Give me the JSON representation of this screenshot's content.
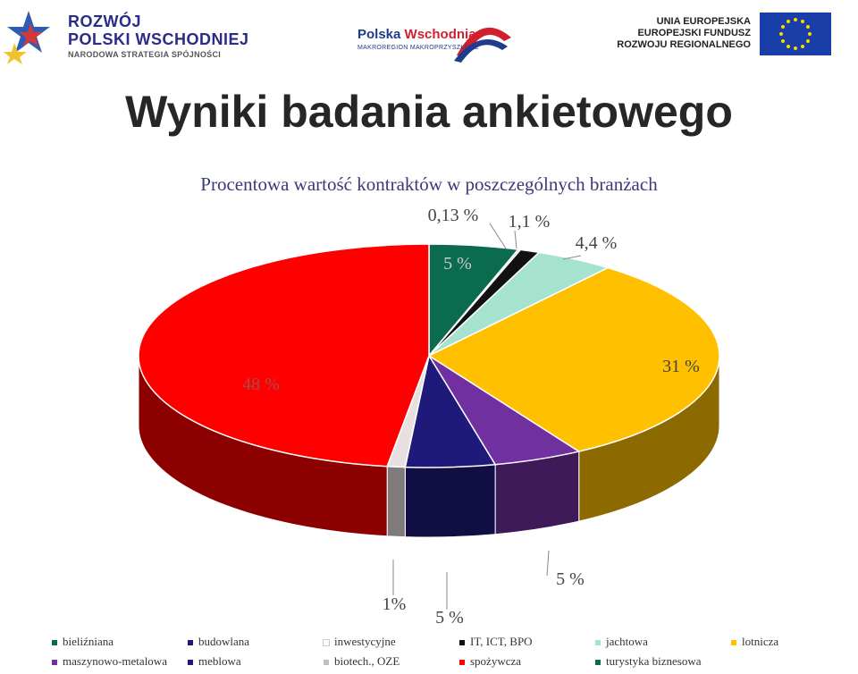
{
  "header": {
    "logo_left": {
      "line1": "ROZWÓJ",
      "line2": "POLSKI WSCHODNIEJ",
      "line3": "NARODOWA STRATEGIA SPÓJNOŚCI"
    },
    "logo_mid": {
      "word1": "Polska",
      "word2": "Wschodnia",
      "tagline": "MAKROREGION MAKROPRZYSZŁOŚĆ"
    },
    "logo_right": {
      "line1": "UNIA EUROPEJSKA",
      "line2": "EUROPEJSKI FUNDUSZ",
      "line3": "ROZWOJU REGIONALNEGO"
    }
  },
  "title": "Wyniki badania ankietowego",
  "chart_data": {
    "type": "pie",
    "title": "Procentowa wartość kontraktów w poszczególnych branżach",
    "slices": [
      {
        "label": "5 %",
        "value": 5,
        "color": "#0b6b4e"
      },
      {
        "label": "0,13 %",
        "value": 0.13,
        "color": "#bfbfbf"
      },
      {
        "label": "1,1 %",
        "value": 1.1,
        "color": "#111111"
      },
      {
        "label": "4,4 %",
        "value": 4.4,
        "color": "#a6e3cf"
      },
      {
        "label": "31 %",
        "value": 31,
        "color": "#ffc000"
      },
      {
        "label": "5 %",
        "value": 5,
        "color": "#7030a0"
      },
      {
        "label": "5 %",
        "value": 5,
        "color": "#1f1a7a"
      },
      {
        "label": "1%",
        "value": 1,
        "color": "#e8e0e0"
      },
      {
        "label": "48 %",
        "value": 48,
        "color": "#ff0000"
      }
    ],
    "legend": [
      {
        "label": "bieliźniana",
        "color": "#0b6b4e"
      },
      {
        "label": "budowlana",
        "color": "#1f1a7a"
      },
      {
        "label": "inwestycyjne",
        "color": "#ffffff"
      },
      {
        "label": "IT, ICT, BPO",
        "color": "#111111"
      },
      {
        "label": "jachtowa",
        "color": "#a6e3cf"
      },
      {
        "label": "lotnicza",
        "color": "#ffc000"
      },
      {
        "label": "maszynowo-metalowa",
        "color": "#7030a0"
      },
      {
        "label": "meblowa",
        "color": "#1f1a7a"
      },
      {
        "label": "biotech., OZE",
        "color": "#bfbfbf"
      },
      {
        "label": "spożywcza",
        "color": "#ff0000"
      },
      {
        "label": "turystyka biznesowa",
        "color": "#0b6b4e"
      }
    ],
    "legend_position": "bottom"
  }
}
